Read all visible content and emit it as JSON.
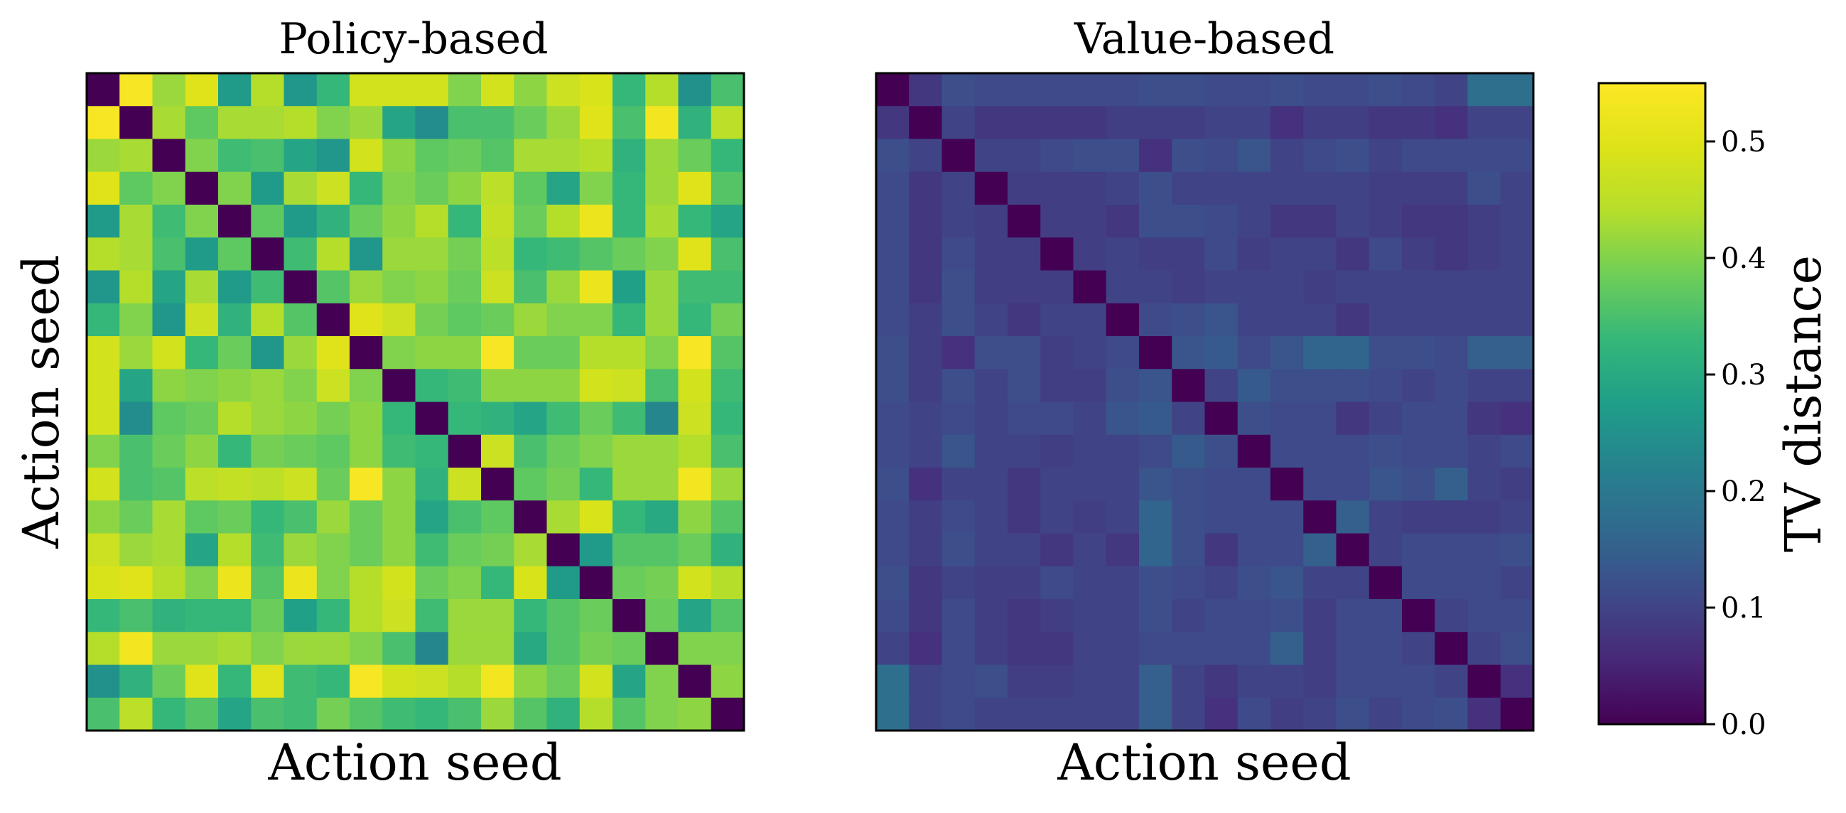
{
  "chart_data": {
    "type": "heatmap",
    "colormap": "viridis",
    "vmin": 0.0,
    "vmax": 0.55,
    "grid": false,
    "colorbar": {
      "label": "TV distance",
      "ticks": [
        0.0,
        0.1,
        0.2,
        0.3,
        0.4,
        0.5
      ],
      "tick_labels": [
        "0.0",
        "0.1",
        "0.2",
        "0.3",
        "0.4",
        "0.5"
      ],
      "placement": "right"
    },
    "panels": [
      {
        "title": "Policy-based",
        "xlabel": "Action seed",
        "ylabel": "Action seed",
        "matrix": [
          [
            0.0,
            0.54,
            0.42,
            0.5,
            0.27,
            0.44,
            0.26,
            0.33,
            0.48,
            0.48,
            0.48,
            0.4,
            0.48,
            0.41,
            0.47,
            0.49,
            0.33,
            0.44,
            0.25,
            0.35
          ],
          [
            0.54,
            0.0,
            0.43,
            0.37,
            0.43,
            0.43,
            0.44,
            0.4,
            0.42,
            0.29,
            0.24,
            0.35,
            0.35,
            0.38,
            0.42,
            0.5,
            0.35,
            0.53,
            0.32,
            0.45
          ],
          [
            0.42,
            0.43,
            0.0,
            0.4,
            0.34,
            0.35,
            0.29,
            0.26,
            0.48,
            0.41,
            0.37,
            0.38,
            0.36,
            0.43,
            0.43,
            0.44,
            0.32,
            0.42,
            0.38,
            0.33
          ],
          [
            0.5,
            0.37,
            0.4,
            0.0,
            0.4,
            0.27,
            0.43,
            0.47,
            0.33,
            0.4,
            0.38,
            0.41,
            0.45,
            0.37,
            0.29,
            0.4,
            0.33,
            0.42,
            0.5,
            0.36
          ],
          [
            0.27,
            0.43,
            0.34,
            0.4,
            0.0,
            0.37,
            0.27,
            0.32,
            0.38,
            0.41,
            0.44,
            0.33,
            0.46,
            0.38,
            0.44,
            0.52,
            0.33,
            0.43,
            0.33,
            0.29
          ],
          [
            0.44,
            0.43,
            0.35,
            0.27,
            0.37,
            0.0,
            0.34,
            0.44,
            0.26,
            0.42,
            0.42,
            0.39,
            0.45,
            0.33,
            0.34,
            0.36,
            0.38,
            0.4,
            0.5,
            0.35
          ],
          [
            0.26,
            0.44,
            0.29,
            0.43,
            0.27,
            0.34,
            0.0,
            0.36,
            0.42,
            0.4,
            0.41,
            0.38,
            0.47,
            0.35,
            0.42,
            0.52,
            0.28,
            0.42,
            0.34,
            0.34
          ],
          [
            0.33,
            0.4,
            0.26,
            0.47,
            0.32,
            0.44,
            0.36,
            0.0,
            0.5,
            0.47,
            0.39,
            0.37,
            0.38,
            0.42,
            0.4,
            0.4,
            0.33,
            0.42,
            0.33,
            0.39
          ],
          [
            0.48,
            0.42,
            0.48,
            0.33,
            0.38,
            0.26,
            0.42,
            0.5,
            0.0,
            0.4,
            0.41,
            0.41,
            0.54,
            0.38,
            0.38,
            0.44,
            0.44,
            0.4,
            0.54,
            0.36
          ],
          [
            0.48,
            0.29,
            0.41,
            0.4,
            0.41,
            0.42,
            0.4,
            0.47,
            0.4,
            0.0,
            0.33,
            0.34,
            0.41,
            0.41,
            0.41,
            0.48,
            0.47,
            0.35,
            0.48,
            0.34
          ],
          [
            0.48,
            0.24,
            0.37,
            0.38,
            0.44,
            0.42,
            0.41,
            0.39,
            0.41,
            0.33,
            0.0,
            0.33,
            0.32,
            0.29,
            0.34,
            0.38,
            0.34,
            0.23,
            0.47,
            0.33
          ],
          [
            0.4,
            0.35,
            0.38,
            0.41,
            0.33,
            0.39,
            0.38,
            0.37,
            0.41,
            0.34,
            0.33,
            0.0,
            0.47,
            0.35,
            0.38,
            0.4,
            0.42,
            0.42,
            0.44,
            0.35
          ],
          [
            0.48,
            0.35,
            0.36,
            0.45,
            0.46,
            0.45,
            0.47,
            0.38,
            0.54,
            0.41,
            0.32,
            0.47,
            0.0,
            0.37,
            0.39,
            0.33,
            0.42,
            0.42,
            0.53,
            0.42
          ],
          [
            0.41,
            0.38,
            0.43,
            0.37,
            0.38,
            0.33,
            0.35,
            0.42,
            0.38,
            0.41,
            0.29,
            0.35,
            0.37,
            0.0,
            0.43,
            0.49,
            0.33,
            0.3,
            0.41,
            0.36
          ],
          [
            0.47,
            0.42,
            0.43,
            0.29,
            0.44,
            0.34,
            0.42,
            0.4,
            0.38,
            0.41,
            0.34,
            0.38,
            0.39,
            0.43,
            0.0,
            0.27,
            0.36,
            0.36,
            0.38,
            0.32
          ],
          [
            0.49,
            0.5,
            0.44,
            0.4,
            0.52,
            0.36,
            0.52,
            0.4,
            0.44,
            0.48,
            0.38,
            0.4,
            0.33,
            0.49,
            0.27,
            0.0,
            0.38,
            0.39,
            0.48,
            0.44
          ],
          [
            0.33,
            0.35,
            0.32,
            0.33,
            0.33,
            0.38,
            0.28,
            0.33,
            0.44,
            0.47,
            0.34,
            0.42,
            0.42,
            0.33,
            0.36,
            0.38,
            0.0,
            0.38,
            0.29,
            0.36
          ],
          [
            0.44,
            0.53,
            0.42,
            0.42,
            0.43,
            0.4,
            0.42,
            0.42,
            0.4,
            0.35,
            0.23,
            0.42,
            0.42,
            0.3,
            0.36,
            0.39,
            0.38,
            0.0,
            0.4,
            0.4
          ],
          [
            0.25,
            0.32,
            0.38,
            0.5,
            0.33,
            0.5,
            0.34,
            0.33,
            0.54,
            0.48,
            0.47,
            0.44,
            0.53,
            0.41,
            0.38,
            0.48,
            0.29,
            0.4,
            0.0,
            0.41
          ],
          [
            0.35,
            0.45,
            0.33,
            0.36,
            0.29,
            0.35,
            0.34,
            0.39,
            0.36,
            0.34,
            0.33,
            0.35,
            0.42,
            0.36,
            0.32,
            0.44,
            0.36,
            0.4,
            0.41,
            0.0
          ]
        ]
      },
      {
        "title": "Value-based",
        "xlabel": "Action seed",
        "ylabel": "",
        "matrix": [
          [
            0.0,
            0.08,
            0.12,
            0.11,
            0.11,
            0.11,
            0.11,
            0.11,
            0.12,
            0.12,
            0.11,
            0.11,
            0.12,
            0.11,
            0.11,
            0.12,
            0.11,
            0.1,
            0.18,
            0.18
          ],
          [
            0.08,
            0.0,
            0.1,
            0.08,
            0.08,
            0.08,
            0.08,
            0.09,
            0.09,
            0.09,
            0.1,
            0.1,
            0.07,
            0.09,
            0.09,
            0.08,
            0.08,
            0.07,
            0.1,
            0.1
          ],
          [
            0.12,
            0.1,
            0.0,
            0.1,
            0.1,
            0.11,
            0.12,
            0.12,
            0.07,
            0.12,
            0.11,
            0.13,
            0.1,
            0.11,
            0.12,
            0.1,
            0.11,
            0.11,
            0.11,
            0.11
          ],
          [
            0.11,
            0.08,
            0.1,
            0.0,
            0.09,
            0.09,
            0.09,
            0.1,
            0.12,
            0.1,
            0.1,
            0.1,
            0.1,
            0.1,
            0.1,
            0.09,
            0.09,
            0.09,
            0.12,
            0.1
          ],
          [
            0.11,
            0.08,
            0.1,
            0.09,
            0.0,
            0.09,
            0.09,
            0.08,
            0.12,
            0.12,
            0.11,
            0.1,
            0.08,
            0.08,
            0.1,
            0.09,
            0.08,
            0.08,
            0.09,
            0.1
          ],
          [
            0.11,
            0.08,
            0.11,
            0.09,
            0.09,
            0.0,
            0.09,
            0.1,
            0.09,
            0.09,
            0.11,
            0.09,
            0.1,
            0.1,
            0.08,
            0.11,
            0.09,
            0.08,
            0.09,
            0.1
          ],
          [
            0.11,
            0.08,
            0.12,
            0.09,
            0.09,
            0.09,
            0.0,
            0.1,
            0.1,
            0.09,
            0.1,
            0.1,
            0.1,
            0.09,
            0.1,
            0.1,
            0.1,
            0.1,
            0.1,
            0.1
          ],
          [
            0.11,
            0.09,
            0.12,
            0.1,
            0.08,
            0.1,
            0.1,
            0.0,
            0.11,
            0.12,
            0.13,
            0.1,
            0.1,
            0.1,
            0.08,
            0.1,
            0.1,
            0.1,
            0.1,
            0.1
          ],
          [
            0.12,
            0.09,
            0.07,
            0.12,
            0.12,
            0.09,
            0.1,
            0.11,
            0.0,
            0.13,
            0.14,
            0.11,
            0.13,
            0.16,
            0.16,
            0.12,
            0.12,
            0.11,
            0.15,
            0.15
          ],
          [
            0.12,
            0.09,
            0.12,
            0.1,
            0.12,
            0.09,
            0.09,
            0.12,
            0.13,
            0.0,
            0.1,
            0.14,
            0.12,
            0.12,
            0.12,
            0.11,
            0.1,
            0.11,
            0.1,
            0.1
          ],
          [
            0.11,
            0.1,
            0.11,
            0.1,
            0.11,
            0.11,
            0.1,
            0.13,
            0.14,
            0.1,
            0.0,
            0.12,
            0.11,
            0.11,
            0.08,
            0.1,
            0.11,
            0.11,
            0.08,
            0.07
          ],
          [
            0.11,
            0.1,
            0.13,
            0.1,
            0.1,
            0.09,
            0.1,
            0.1,
            0.11,
            0.14,
            0.12,
            0.0,
            0.11,
            0.11,
            0.11,
            0.12,
            0.11,
            0.11,
            0.1,
            0.11
          ],
          [
            0.12,
            0.07,
            0.1,
            0.1,
            0.08,
            0.1,
            0.1,
            0.1,
            0.13,
            0.12,
            0.11,
            0.11,
            0.0,
            0.11,
            0.11,
            0.13,
            0.12,
            0.15,
            0.1,
            0.09
          ],
          [
            0.11,
            0.09,
            0.11,
            0.1,
            0.08,
            0.1,
            0.09,
            0.1,
            0.16,
            0.12,
            0.11,
            0.11,
            0.11,
            0.0,
            0.15,
            0.1,
            0.09,
            0.09,
            0.09,
            0.1
          ],
          [
            0.11,
            0.09,
            0.12,
            0.1,
            0.1,
            0.08,
            0.1,
            0.08,
            0.16,
            0.12,
            0.08,
            0.11,
            0.11,
            0.15,
            0.0,
            0.1,
            0.11,
            0.11,
            0.11,
            0.12
          ],
          [
            0.12,
            0.08,
            0.1,
            0.09,
            0.09,
            0.11,
            0.1,
            0.1,
            0.12,
            0.11,
            0.1,
            0.12,
            0.13,
            0.1,
            0.1,
            0.0,
            0.11,
            0.11,
            0.11,
            0.1
          ],
          [
            0.11,
            0.08,
            0.11,
            0.09,
            0.08,
            0.09,
            0.1,
            0.1,
            0.12,
            0.1,
            0.11,
            0.11,
            0.12,
            0.09,
            0.11,
            0.11,
            0.0,
            0.1,
            0.11,
            0.11
          ],
          [
            0.1,
            0.07,
            0.11,
            0.09,
            0.08,
            0.08,
            0.1,
            0.1,
            0.11,
            0.11,
            0.11,
            0.11,
            0.15,
            0.09,
            0.11,
            0.11,
            0.1,
            0.0,
            0.1,
            0.12
          ],
          [
            0.18,
            0.1,
            0.11,
            0.12,
            0.09,
            0.09,
            0.1,
            0.1,
            0.15,
            0.1,
            0.08,
            0.1,
            0.1,
            0.09,
            0.11,
            0.11,
            0.11,
            0.1,
            0.0,
            0.07
          ],
          [
            0.18,
            0.1,
            0.11,
            0.1,
            0.1,
            0.1,
            0.1,
            0.1,
            0.15,
            0.1,
            0.07,
            0.11,
            0.09,
            0.1,
            0.12,
            0.1,
            0.11,
            0.12,
            0.07,
            0.0
          ]
        ]
      }
    ]
  }
}
